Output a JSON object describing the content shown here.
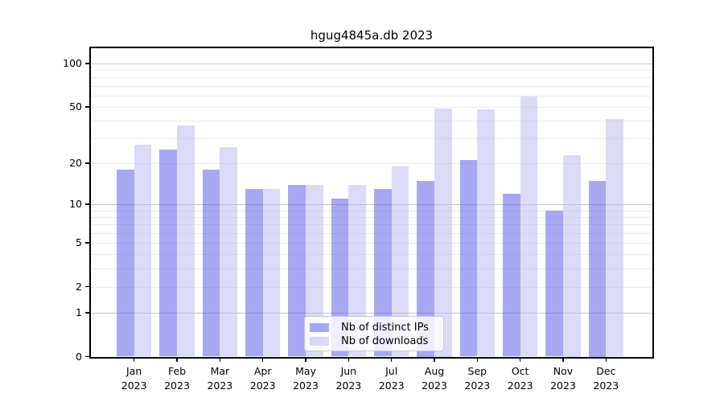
{
  "chart_data": {
    "type": "bar",
    "title": "hgug4845a.db 2023",
    "categories": [
      "Jan",
      "Feb",
      "Mar",
      "Apr",
      "May",
      "Jun",
      "Jul",
      "Aug",
      "Sep",
      "Oct",
      "Nov",
      "Dec"
    ],
    "category_year": "2023",
    "series": [
      {
        "name": "Nb of distinct IPs",
        "color": "#a8a8f0",
        "color_rgba": "rgba(82,82,230,0.5)",
        "values": [
          18,
          25,
          18,
          13,
          14,
          11,
          13,
          15,
          21,
          12,
          9,
          15
        ]
      },
      {
        "name": "Nb of downloads",
        "color": "#dcdcf8",
        "color_rgba": "rgba(184,184,240,0.5)",
        "values": [
          27,
          37,
          26,
          13,
          14,
          14,
          19,
          49,
          48,
          59,
          23,
          41
        ]
      }
    ],
    "xlabel": "",
    "ylabel": "",
    "yscale": "log1p",
    "ylim": [
      0,
      128
    ],
    "yticks": [
      0,
      1,
      2,
      5,
      10,
      20,
      50,
      100
    ],
    "grid": true,
    "grid_major_values": [
      1,
      10,
      100
    ],
    "legend_position": "bottom-center"
  }
}
